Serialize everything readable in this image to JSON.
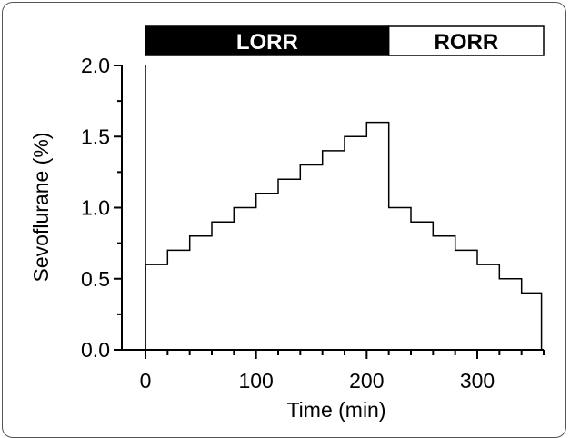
{
  "chart_data": {
    "type": "line",
    "title": "",
    "xlabel": "Time (min)",
    "ylabel": "Sevoflurane (%)",
    "xlim": [
      0,
      360
    ],
    "ylim": [
      0.0,
      2.0
    ],
    "x_ticks": [
      "0",
      "100",
      "200",
      "300"
    ],
    "y_ticks": [
      "0.0",
      "0.5",
      "1.0",
      "1.5",
      "2.0"
    ],
    "x_minor_step": 20,
    "grid": false,
    "legend": "none",
    "line_color": "#000000",
    "phase_bar": [
      {
        "label": "LORR",
        "start": 0,
        "end": 220,
        "fill": "#000000",
        "text_color": "#ffffff"
      },
      {
        "label": "RORR",
        "start": 220,
        "end": 360,
        "fill": "#ffffff",
        "text_color": "#000000"
      }
    ],
    "series": [
      {
        "x": [
          0,
          0,
          20,
          20,
          40,
          40,
          60,
          60,
          80,
          80,
          100,
          100,
          120,
          120,
          140,
          140,
          160,
          160,
          180,
          180,
          200,
          200,
          220,
          220,
          240,
          240,
          260,
          260,
          280,
          280,
          300,
          300,
          320,
          320,
          340,
          340,
          358,
          358
        ],
        "y": [
          0.0,
          0.6,
          0.6,
          0.7,
          0.7,
          0.8,
          0.8,
          0.9,
          0.9,
          1.0,
          1.0,
          1.1,
          1.1,
          1.2,
          1.2,
          1.3,
          1.3,
          1.4,
          1.4,
          1.5,
          1.5,
          1.6,
          1.6,
          1.0,
          1.0,
          0.9,
          0.9,
          0.8,
          0.8,
          0.7,
          0.7,
          0.6,
          0.6,
          0.5,
          0.5,
          0.4,
          0.4,
          0.0
        ]
      }
    ]
  }
}
